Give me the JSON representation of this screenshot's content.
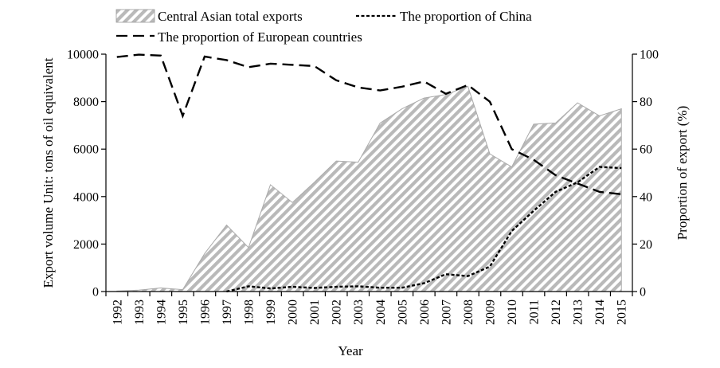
{
  "chart_data": {
    "type": "area",
    "xlabel": "Year",
    "ylabel_left": "Export volume Unit: tons of oil equivalent",
    "ylabel_right": "Proportion of export (%)",
    "ylim_left": [
      0,
      10000
    ],
    "ylim_right": [
      0,
      100
    ],
    "left_ticks": [
      "0",
      "2000",
      "4000",
      "6000",
      "8000",
      "10000"
    ],
    "right_ticks": [
      "0",
      "20",
      "40",
      "60",
      "80",
      "100"
    ],
    "categories": [
      "1992",
      "1993",
      "1994",
      "1995",
      "1996",
      "1997",
      "1998",
      "1999",
      "2000",
      "2001",
      "2002",
      "2003",
      "2004",
      "2005",
      "2006",
      "2007",
      "2008",
      "2009",
      "2010",
      "2011",
      "2012",
      "2013",
      "2014",
      "2015"
    ],
    "grid": false,
    "legend": "top",
    "series": [
      {
        "name": "Central Asian total exports",
        "axis": "left",
        "style": "hatched-area",
        "values": [
          20,
          60,
          150,
          80,
          1600,
          2800,
          1850,
          4500,
          3750,
          4600,
          5500,
          5450,
          7100,
          7700,
          8150,
          8300,
          8650,
          5800,
          5250,
          7050,
          7100,
          7950,
          7400,
          7700
        ]
      },
      {
        "name": "The proportion of China",
        "axis": "right",
        "style": "short-dash",
        "values": [
          null,
          null,
          null,
          null,
          null,
          0,
          2.2,
          1.3,
          2,
          1.5,
          2,
          2.2,
          1.6,
          1.6,
          3.5,
          7.3,
          6.5,
          10.5,
          25.5,
          34,
          42,
          46,
          52.5,
          52
        ]
      },
      {
        "name": "The proportion of European countries",
        "axis": "right",
        "style": "long-dash",
        "values": [
          98.8,
          99.8,
          99.4,
          74,
          99,
          97.5,
          94.5,
          96,
          95.5,
          95,
          89,
          86,
          84.7,
          86.3,
          88.5,
          83.3,
          87,
          80,
          60,
          55.5,
          49,
          45.5,
          42,
          41
        ]
      }
    ]
  }
}
